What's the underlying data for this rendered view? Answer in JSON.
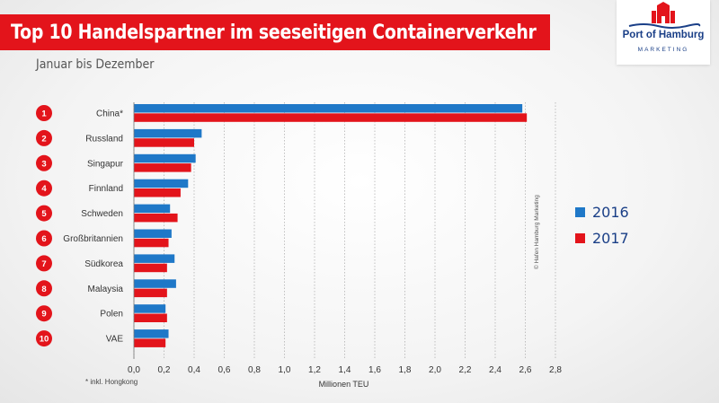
{
  "header": {
    "title": "Top 10 Handelspartner im seeseitigen Containerverkehr",
    "subtitle": "Januar bis Dezember"
  },
  "logo": {
    "name": "Port of Hamburg",
    "sub": "MARKETING"
  },
  "credit": "© Hafen Hamburg Marketing",
  "footnote": "*   inkl. Hongkong",
  "colors": {
    "accent": "#e3141b",
    "series2016": "#1f78c8",
    "series2017": "#e3141b",
    "rank_circle": "#e3141b",
    "brand_blue": "#1a3f87"
  },
  "chart_data": {
    "type": "bar",
    "orientation": "horizontal",
    "title": "Top 10 Handelspartner im seeseitigen Containerverkehr",
    "xlabel": "Millionen TEU",
    "ylabel": "",
    "xlim": [
      0,
      2.8
    ],
    "xticks": [
      "0,0",
      "0,2",
      "0,4",
      "0,6",
      "0,8",
      "1,0",
      "1,2",
      "1,4",
      "1,6",
      "1,8",
      "2,0",
      "2,2",
      "2,4",
      "2,6",
      "2,8"
    ],
    "ranks": [
      "1",
      "2",
      "3",
      "4",
      "5",
      "6",
      "7",
      "8",
      "9",
      "10"
    ],
    "categories": [
      "China*",
      "Russland",
      "Singapur",
      "Finnland",
      "Schweden",
      "Großbritannien",
      "Südkorea",
      "Malaysia",
      "Polen",
      "VAE"
    ],
    "series": [
      {
        "name": "2016",
        "values": [
          2.58,
          0.45,
          0.41,
          0.36,
          0.24,
          0.25,
          0.27,
          0.28,
          0.21,
          0.23
        ]
      },
      {
        "name": "2017",
        "values": [
          2.61,
          0.4,
          0.38,
          0.31,
          0.29,
          0.23,
          0.22,
          0.22,
          0.22,
          0.21
        ]
      }
    ],
    "legend": "right",
    "grid": true
  }
}
